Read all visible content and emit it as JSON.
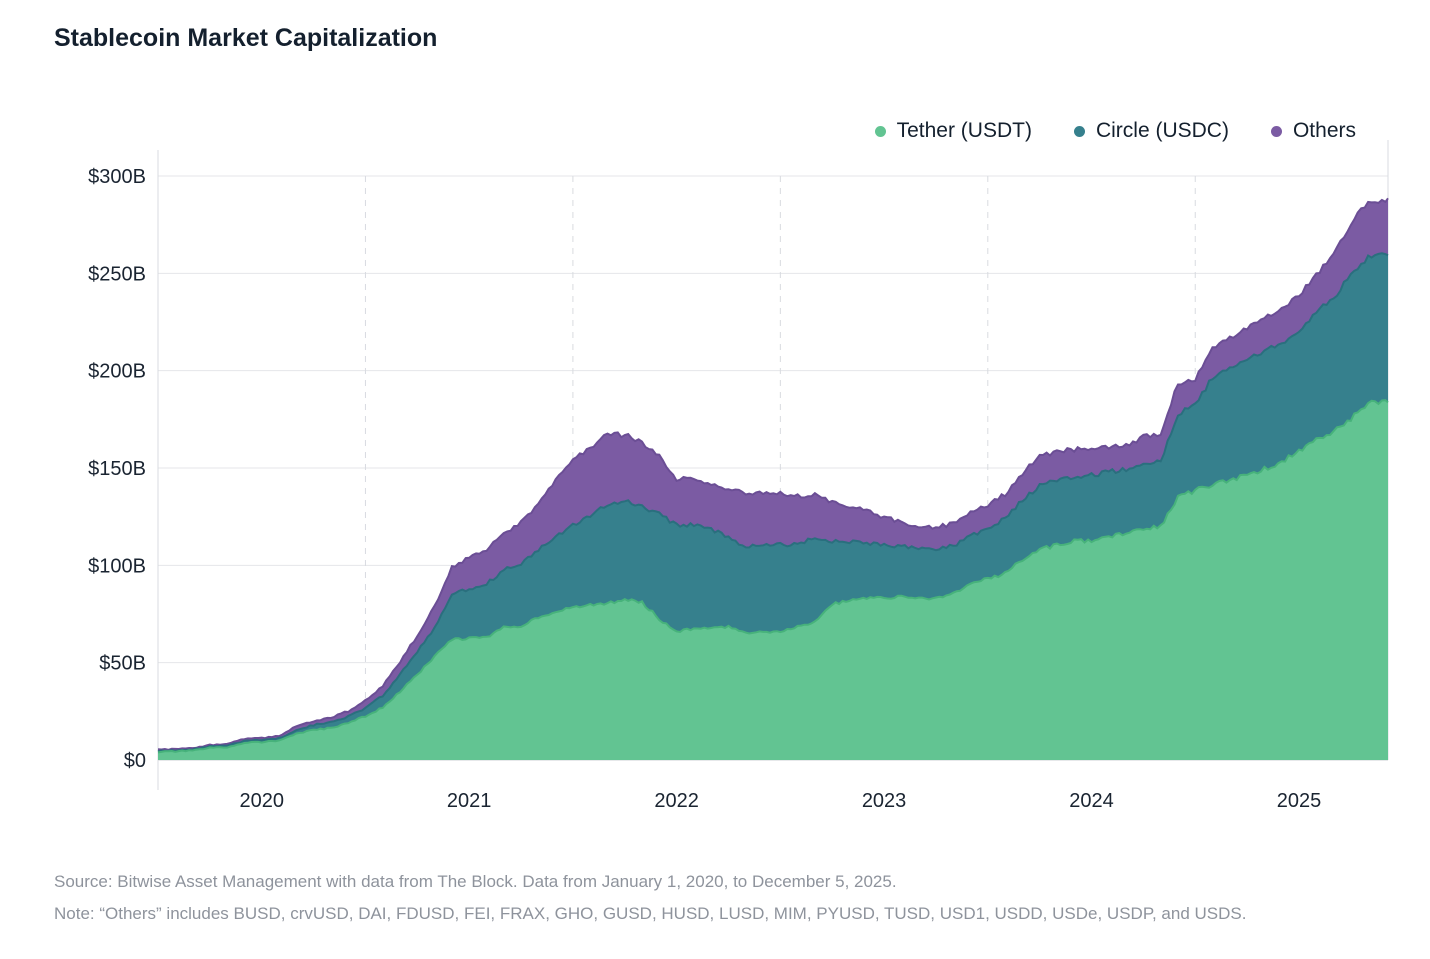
{
  "header": {
    "title": "Stablecoin Market Capitalization"
  },
  "footer": {
    "source": "Source: Bitwise Asset Management with data from The Block. Data from January 1, 2020, to December 5, 2025.",
    "note": "Note: “Others” includes BUSD, crvUSD, DAI, FDUSD, FEI, FRAX, GHO, GUSD, HUSD, LUSD, MIM, PYUSD, TUSD, USD1, USDD, USDe, USDP, and USDS."
  },
  "chart_data": {
    "type": "area",
    "stacked": true,
    "title": "Stablecoin Market Capitalization",
    "unit": "billions USD",
    "x_start": "2020-01-01",
    "x_end": "2025-12-05",
    "sample_interval": "monthly",
    "months_total": 71.15,
    "ylim": [
      0,
      300
    ],
    "grid": {
      "horizontal": "solid",
      "vertical_year_boundaries": "dashed"
    },
    "legend_position": "top-right",
    "y_ticks": [
      {
        "value": 0,
        "label": "$0"
      },
      {
        "value": 50,
        "label": "$50B"
      },
      {
        "value": 100,
        "label": "$100B"
      },
      {
        "value": 150,
        "label": "$150B"
      },
      {
        "value": 200,
        "label": "$200B"
      },
      {
        "value": 250,
        "label": "$250B"
      },
      {
        "value": 300,
        "label": "$300B"
      }
    ],
    "x_tick_labels": [
      "2020",
      "2021",
      "2022",
      "2023",
      "2024",
      "2025"
    ],
    "x_tick_month_positions": [
      6,
      18,
      30,
      42,
      54,
      66
    ],
    "year_boundary_months": [
      12,
      24,
      36,
      48,
      60
    ],
    "series": [
      {
        "name": "Tether (USDT)",
        "color": "#62c492",
        "edge_color": "#47b27b",
        "values": [
          4.1,
          4.4,
          4.8,
          6.2,
          6.5,
          9.0,
          9.2,
          10.0,
          13.5,
          15.3,
          16.5,
          19.0,
          22.5,
          27.0,
          35.0,
          44.0,
          53.0,
          62.0,
          62.5,
          63.0,
          68.0,
          69.0,
          73.5,
          76.0,
          78.3,
          79.5,
          80.5,
          82.5,
          81.0,
          72.5,
          66.0,
          67.5,
          67.5,
          68.5,
          65.5,
          65.8,
          66.2,
          68.5,
          71.0,
          80.0,
          82.0,
          83.0,
          83.3,
          83.8,
          83.0,
          83.2,
          85.5,
          90.5,
          93.0,
          96.0,
          103.0,
          108.0,
          110.5,
          112.5,
          112.8,
          114.0,
          117.0,
          119.0,
          120.0,
          135.0,
          138.5,
          141.5,
          143.5,
          146.5,
          149.5,
          153.0,
          159.0,
          164.5,
          169.0,
          175.5,
          183.5,
          184.5
        ]
      },
      {
        "name": "Circle (USDC)",
        "color": "#36808d",
        "edge_color": "#2a6f7e",
        "values": [
          0.5,
          0.5,
          0.55,
          0.7,
          0.75,
          0.8,
          1.0,
          1.2,
          1.9,
          2.7,
          2.9,
          3.3,
          4.2,
          6.0,
          9.0,
          11.5,
          14.8,
          23.0,
          25.5,
          27.5,
          29.5,
          32.0,
          34.5,
          38.5,
          42.5,
          46.0,
          51.0,
          50.5,
          49.0,
          54.0,
          54.5,
          53.5,
          51.0,
          46.0,
          44.0,
          44.5,
          44.5,
          42.0,
          43.5,
          32.5,
          30.0,
          28.5,
          27.0,
          26.0,
          25.5,
          25.3,
          24.5,
          24.5,
          26.0,
          28.0,
          30.5,
          33.0,
          33.5,
          32.5,
          33.5,
          34.0,
          32.5,
          33.5,
          33.0,
          43.0,
          44.0,
          55.0,
          58.0,
          59.5,
          60.5,
          61.0,
          62.0,
          65.0,
          68.5,
          74.0,
          75.0,
          75.5
        ]
      },
      {
        "name": "Others",
        "color": "#7b5ba3",
        "edge_color": "#6b4e95",
        "values": [
          0.6,
          0.65,
          0.7,
          0.8,
          0.9,
          1.0,
          1.1,
          1.3,
          1.7,
          2.0,
          2.3,
          2.8,
          3.8,
          5.0,
          6.5,
          8.5,
          11.0,
          14.0,
          16.0,
          17.5,
          19.0,
          21.0,
          24.0,
          29.0,
          34.0,
          35.0,
          35.5,
          34.0,
          33.0,
          30.0,
          24.0,
          23.0,
          22.5,
          25.0,
          27.5,
          27.0,
          26.0,
          25.0,
          22.0,
          19.5,
          18.0,
          16.5,
          14.5,
          12.5,
          11.0,
          11.0,
          11.5,
          12.0,
          12.0,
          12.5,
          14.0,
          14.5,
          14.5,
          14.5,
          13.5,
          13.0,
          12.0,
          13.5,
          13.5,
          16.0,
          13.0,
          16.0,
          15.5,
          16.5,
          18.0,
          17.0,
          17.5,
          19.5,
          22.5,
          26.5,
          28.5,
          27.5
        ]
      }
    ],
    "style_colors": {
      "grid": "#e5e6e9",
      "baseline": "#cdd0d5",
      "dashed_grid": "#d8dbe0",
      "axis_text": "#1a2431",
      "title_text": "#14202e",
      "footer_text": "#8e939c"
    }
  }
}
